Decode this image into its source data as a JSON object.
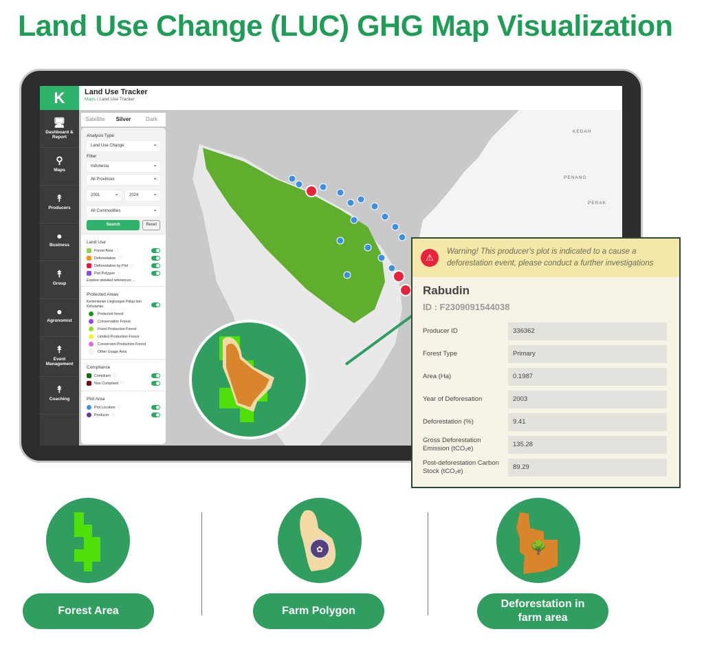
{
  "page_title": "Land Use Change (LUC) GHG Map Visualization",
  "app": {
    "logo": "K",
    "title": "Land Use Tracker",
    "breadcrumb": [
      "Maps",
      "/ Land Use Tracker"
    ]
  },
  "sidebar": {
    "items": [
      {
        "label": "Dashboard & Report",
        "icon": "monitor-icon"
      },
      {
        "label": "Maps",
        "icon": "map-pin-icon"
      },
      {
        "label": "Producers",
        "icon": "producer-icon"
      },
      {
        "label": "Business",
        "icon": "business-icon"
      },
      {
        "label": "Group",
        "icon": "group-icon"
      },
      {
        "label": "Agronomist",
        "icon": "agronomist-icon"
      },
      {
        "label": "Event Management",
        "icon": "event-icon"
      },
      {
        "label": "Coaching",
        "icon": "coaching-icon"
      }
    ]
  },
  "map_tabs": [
    "Satellite",
    "Silver",
    "Dark"
  ],
  "map_tab_active": "Silver",
  "filters": {
    "analysis_type_label": "Analysis Type",
    "analysis_type": "Land Use Change",
    "filter_label": "Filter",
    "country": "Indonesia",
    "province": "All Provinces",
    "year_from": "2001",
    "year_to": "2024",
    "commodity": "All Commodities",
    "search": "Search",
    "reset": "Reset"
  },
  "land_use": {
    "title": "Land Use",
    "items": [
      {
        "label": "Forest Area",
        "color": "#8ed14f"
      },
      {
        "label": "Deforestation",
        "color": "#f7941d"
      },
      {
        "label": "Deforestation by Plot",
        "color": "#e8173c"
      },
      {
        "label": "Plot Polygon",
        "color": "#8c4bf0"
      }
    ],
    "link": "Explore detailed references →"
  },
  "protected_areas": {
    "title": "Protected Areas",
    "source": "Kementerian Lingkungan Hidup dan Kehutanan",
    "items": [
      {
        "label": "Protected forest",
        "color": "#139c1a"
      },
      {
        "label": "Conservation Forest",
        "color": "#9b3ff0"
      },
      {
        "label": "Fixed Production Forest",
        "color": "#8fe31b"
      },
      {
        "label": "Limited Production Forest",
        "color": "#f5f51a"
      },
      {
        "label": "Conversion Production Forest",
        "color": "#ef63e8"
      },
      {
        "label": "Other Usage Area",
        "color": "#ffffff"
      }
    ]
  },
  "compliance": {
    "title": "Compliance",
    "items": [
      {
        "label": "Compliant",
        "color": "#0f6e14"
      },
      {
        "label": "Non Compliant",
        "color": "#7a0a0a"
      }
    ]
  },
  "plot_area": {
    "title": "Plot Area",
    "items": [
      {
        "label": "Plot Location",
        "color": "#3d8fe0"
      },
      {
        "label": "Producer",
        "color": "#5a3f9a"
      }
    ]
  },
  "map_labels": [
    "KEDAH",
    "PENANG",
    "PERAK"
  ],
  "popup": {
    "warning": "Warning! This producer's plot is indicated to a cause a deforestation event, please conduct a further investigations",
    "name": "Rabudin",
    "id": "ID : F2309091544038",
    "fields": [
      {
        "key": "Producer ID",
        "value": "336362"
      },
      {
        "key": "Forest Type",
        "value": "Primary"
      },
      {
        "key": "Area (Ha)",
        "value": "0.1987"
      },
      {
        "key": "Year of Deforesation",
        "value": "2003"
      },
      {
        "key": "Deforestation (%)",
        "value": "9.41"
      },
      {
        "key": "Gross Deforestation Emission (tCO₂e)",
        "value": "135.28"
      },
      {
        "key": "Post-deforestation Carbon Stock (tCO₂e)",
        "value": "89.29"
      }
    ]
  },
  "legend_cards": [
    {
      "label": "Forest Area"
    },
    {
      "label": "Farm Polygon"
    },
    {
      "label": "Deforestation in farm area"
    }
  ],
  "colors": {
    "brand": "#1f9d57",
    "forest": "#4fe00b",
    "farm": "#f3d9a4",
    "deforestation": "#d9852c"
  }
}
